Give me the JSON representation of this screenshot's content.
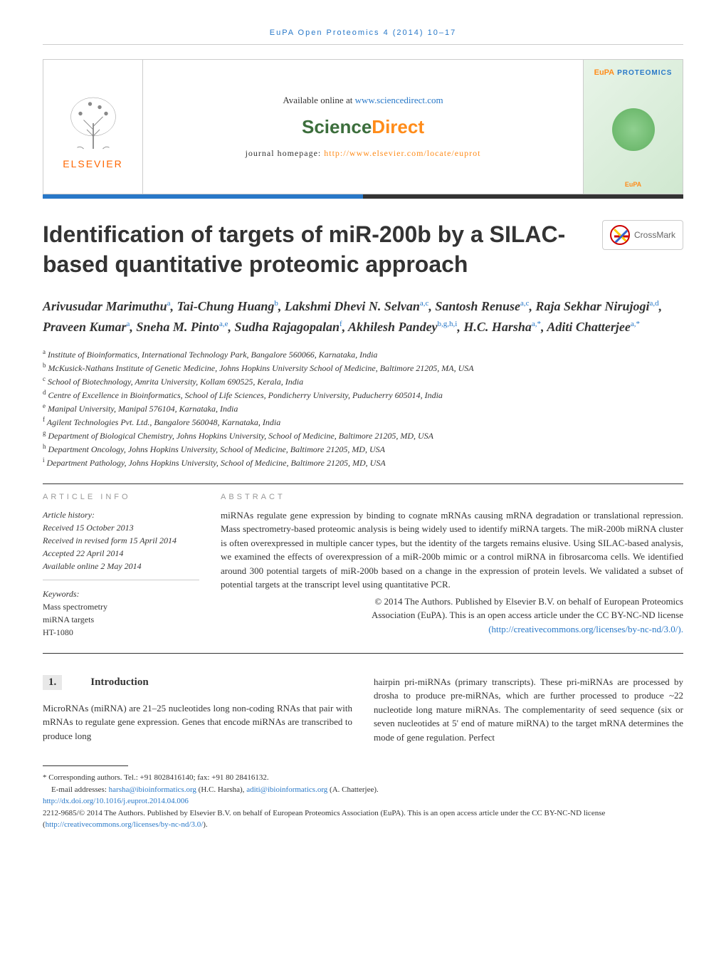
{
  "running_head": "EuPA Open Proteomics 4 (2014) 10–17",
  "header": {
    "available_text": "Available online at ",
    "available_url": "www.sciencedirect.com",
    "sciencedirect_science": "Science",
    "sciencedirect_direct": "Direct",
    "homepage_label": "journal homepage: ",
    "homepage_url": "http://www.elsevier.com/locate/euprot",
    "elsevier_text": "ELSEVIER",
    "eupa_top": "PROTEOMICS",
    "eupa_prefix": "EuPA",
    "eupa_small": "EuPA"
  },
  "crossmark_label": "CrossMark",
  "title": "Identification of targets of miR-200b by a SILAC-based quantitative proteomic approach",
  "authors_html": "Arivusudar Marimuthu<sup>a</sup>, Tai-Chung Huang<sup>b</sup>, Lakshmi Dhevi N. Selvan<sup>a,c</sup>, Santosh Renuse<sup>a,c</sup>, Raja Sekhar Nirujogi<sup>a,d</sup>, Praveen Kumar<sup>a</sup>, Sneha M. Pinto<sup>a,e</sup>, Sudha Rajagopalan<sup>f</sup>, Akhilesh Pandey<sup>b,g,h,i</sup>, H.C. Harsha<sup>a,*</sup>, Aditi Chatterjee<sup>a,*</sup>",
  "affiliations": [
    {
      "sup": "a",
      "text": "Institute of Bioinformatics, International Technology Park, Bangalore 560066, Karnataka, India"
    },
    {
      "sup": "b",
      "text": "McKusick-Nathans Institute of Genetic Medicine, Johns Hopkins University School of Medicine, Baltimore 21205, MA, USA"
    },
    {
      "sup": "c",
      "text": "School of Biotechnology, Amrita University, Kollam 690525, Kerala, India"
    },
    {
      "sup": "d",
      "text": "Centre of Excellence in Bioinformatics, School of Life Sciences, Pondicherry University, Puducherry 605014, India"
    },
    {
      "sup": "e",
      "text": "Manipal University, Manipal 576104, Karnataka, India"
    },
    {
      "sup": "f",
      "text": "Agilent Technologies Pvt. Ltd., Bangalore 560048, Karnataka, India"
    },
    {
      "sup": "g",
      "text": "Department of Biological Chemistry, Johns Hopkins University, School of Medicine, Baltimore 21205, MD, USA"
    },
    {
      "sup": "h",
      "text": "Department Oncology, Johns Hopkins University, School of Medicine, Baltimore 21205, MD, USA"
    },
    {
      "sup": "i",
      "text": "Department Pathology, Johns Hopkins University, School of Medicine, Baltimore 21205, MD, USA"
    }
  ],
  "article_info_heading": "ARTICLE INFO",
  "abstract_heading": "ABSTRACT",
  "article_history": {
    "label": "Article history:",
    "received": "Received 15 October 2013",
    "revised": "Received in revised form 15 April 2014",
    "accepted": "Accepted 22 April 2014",
    "online": "Available online 2 May 2014"
  },
  "keywords": {
    "label": "Keywords:",
    "items": [
      "Mass spectrometry",
      "miRNA targets",
      "HT-1080"
    ]
  },
  "abstract_text": "miRNAs regulate gene expression by binding to cognate mRNAs causing mRNA degradation or translational repression. Mass spectrometry-based proteomic analysis is being widely used to identify miRNA targets. The miR-200b miRNA cluster is often overexpressed in multiple cancer types, but the identity of the targets remains elusive. Using SILAC-based analysis, we examined the effects of overexpression of a miR-200b mimic or a control miRNA in fibrosarcoma cells. We identified around 300 potential targets of miR-200b based on a change in the expression of protein levels. We validated a subset of potential targets at the transcript level using quantitative PCR.",
  "copyright": {
    "line1": "© 2014 The Authors. Published by Elsevier B.V. on behalf of European Proteomics",
    "line2": "Association (EuPA). This is an open access article under the CC BY-NC-ND license",
    "license_url": "(http://creativecommons.org/licenses/by-nc-nd/3.0/)."
  },
  "section": {
    "num": "1.",
    "name": "Introduction"
  },
  "body_left": "MicroRNAs (miRNA) are 21–25 nucleotides long non-coding RNAs that pair with mRNAs to regulate gene expression. Genes that encode miRNAs are transcribed to produce long",
  "body_right": "hairpin pri-miRNAs (primary transcripts). These pri-miRNAs are processed by drosha to produce pre-miRNAs, which are further processed to produce ~22 nucleotide long mature miRNAs. The complementarity of seed sequence (six or seven nucleotides at 5' end of mature miRNA) to the target mRNA determines the mode of gene regulation. Perfect",
  "footnotes": {
    "corresponding": "* Corresponding authors. Tel.: +91 8028416140; fax: +91 80 28416132.",
    "email_label": "E-mail addresses: ",
    "email1": "harsha@ibioinformatics.org",
    "email1_name": " (H.C. Harsha), ",
    "email2": "aditi@ibioinformatics.org",
    "email2_name": " (A. Chatterjee).",
    "doi": "http://dx.doi.org/10.1016/j.euprot.2014.04.006",
    "issn": "2212-9685/© 2014 The Authors. Published by Elsevier B.V. on behalf of European Proteomics Association (EuPA). This is an open access article under the CC BY-NC-ND license (",
    "license_url": "http://creativecommons.org/licenses/by-nc-nd/3.0/",
    "license_close": ")."
  },
  "colors": {
    "link": "#2878c8",
    "orange": "#ff8c1a",
    "green": "#3c6e3c"
  }
}
